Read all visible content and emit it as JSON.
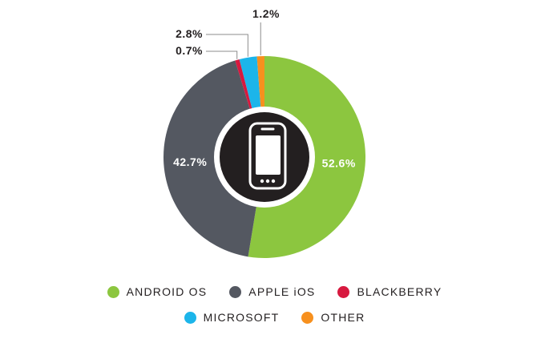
{
  "chart_data": {
    "type": "pie",
    "categories": [
      "ANDROID OS",
      "APPLE iOS",
      "BLACKBERRY",
      "MICROSOFT",
      "OTHER"
    ],
    "values": [
      52.6,
      42.7,
      0.7,
      2.8,
      1.2
    ],
    "labels": [
      "52.6%",
      "42.7%",
      "0.7%",
      "2.8%",
      "1.2%"
    ],
    "colors": [
      "#8cc63f",
      "#545861",
      "#d7193f",
      "#1cb5ea",
      "#f7901e"
    ],
    "center_icon": "smartphone-icon",
    "legend_position": "bottom"
  }
}
